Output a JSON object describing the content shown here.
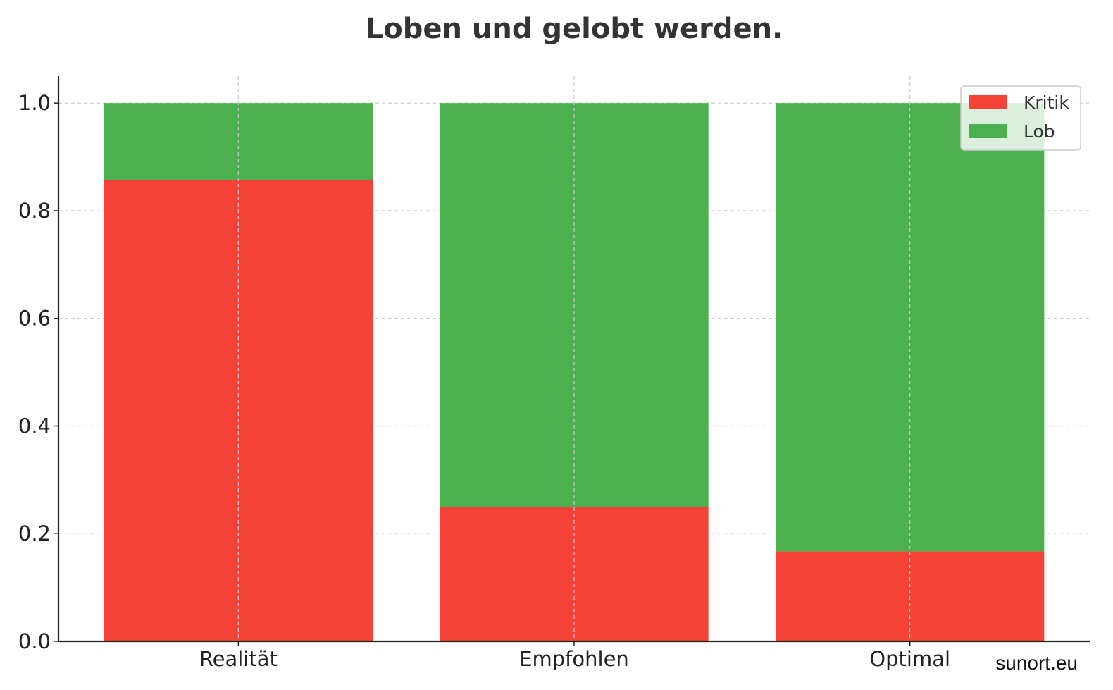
{
  "chart_data": {
    "type": "bar",
    "stacked": true,
    "title": "Loben und gelobt werden.",
    "xlabel": "",
    "ylabel": "",
    "categories": [
      "Realität",
      "Empfohlen",
      "Optimal"
    ],
    "series": [
      {
        "name": "Kritik",
        "color": "#f44336",
        "values": [
          0.857,
          0.25,
          0.167
        ]
      },
      {
        "name": "Lob",
        "color": "#4caf50",
        "values": [
          0.143,
          0.75,
          0.833
        ]
      }
    ],
    "ylim": [
      0,
      1.05
    ],
    "yticks": [
      "0.0",
      "0.2",
      "0.4",
      "0.6",
      "0.8",
      "1.0"
    ],
    "grid": true,
    "legend_position": "top-right"
  },
  "watermark": "sunort.eu"
}
